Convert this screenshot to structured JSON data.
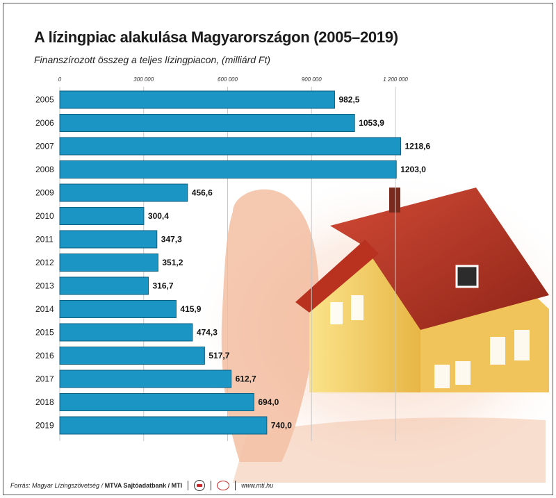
{
  "header": {
    "title": "A lízingpiac alakulása Magyarországon (2005–2019)",
    "subtitle": "Finanszírozott összeg a teljes lízingpiacon, (milliárd Ft)"
  },
  "footer": {
    "source_prefix": "Forrás: Magyar Lízingszövetség / ",
    "source_bold": "MTVA Sajtóadatbank / MTI",
    "website": "www.mti.hu"
  },
  "colors": {
    "bar_fill": "#1b96c4",
    "bar_stroke": "#0f5f80",
    "grid": "#c8c8c8"
  },
  "chart_data": {
    "type": "bar",
    "orientation": "horizontal",
    "categories": [
      "2005",
      "2006",
      "2007",
      "2008",
      "2009",
      "2010",
      "2011",
      "2012",
      "2013",
      "2014",
      "2015",
      "2016",
      "2017",
      "2018",
      "2019"
    ],
    "values": [
      982.5,
      1053.9,
      1218.6,
      1203.0,
      456.6,
      300.4,
      347.3,
      351.2,
      316.7,
      415.9,
      474.3,
      517.7,
      612.7,
      694.0,
      740.0
    ],
    "value_labels": [
      "982,5",
      "1053,9",
      "1218,6",
      "1203,0",
      "456,6",
      "300,4",
      "347,3",
      "351,2",
      "316,7",
      "415,9",
      "474,3",
      "517,7",
      "612,7",
      "694,0",
      "740,0"
    ],
    "x_ticks": [
      0,
      300,
      600,
      900,
      1200
    ],
    "x_tick_labels": [
      "0",
      "300 000",
      "600 000",
      "900 000",
      "1 200 000"
    ],
    "xlim": [
      0,
      1200
    ],
    "grid": true,
    "legend": "none"
  }
}
